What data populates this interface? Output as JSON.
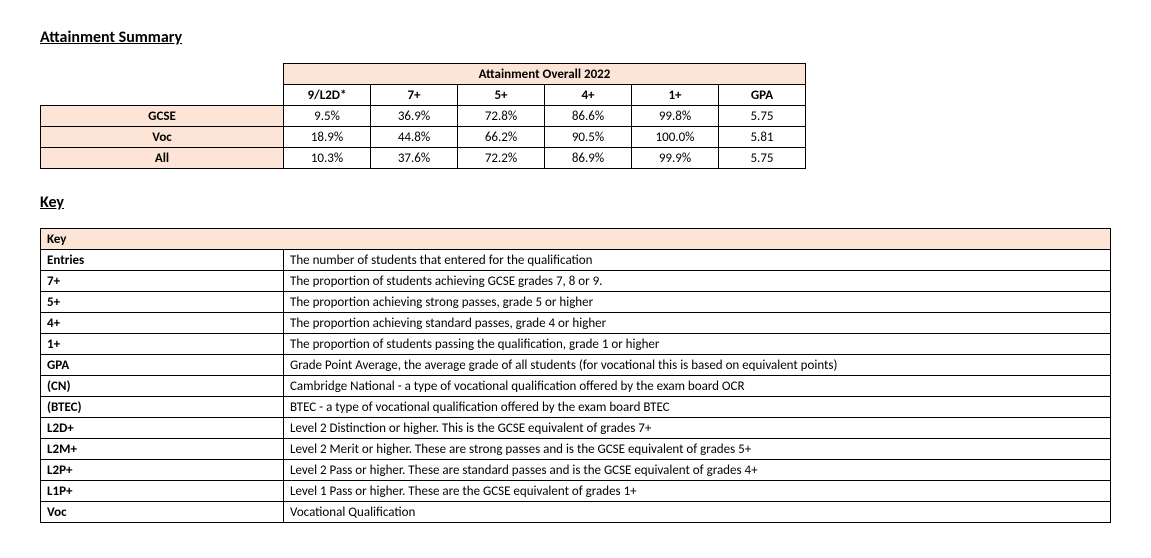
{
  "headings": {
    "attainment_summary": "Attainment Summary",
    "key": "Key"
  },
  "attainment": {
    "title": "Attainment Overall 2022",
    "columns": [
      "9/L2D*",
      "7+",
      "5+",
      "4+",
      "1+",
      "GPA"
    ],
    "rows": [
      {
        "label": "GCSE",
        "values": [
          "9.5%",
          "36.9%",
          "72.8%",
          "86.6%",
          "99.8%",
          "5.75"
        ]
      },
      {
        "label": "Voc",
        "values": [
          "18.9%",
          "44.8%",
          "66.2%",
          "90.5%",
          "100.0%",
          "5.81"
        ]
      },
      {
        "label": "All",
        "values": [
          "10.3%",
          "37.6%",
          "72.2%",
          "86.9%",
          "99.9%",
          "5.75"
        ]
      }
    ]
  },
  "key_table": {
    "title": "Key",
    "rows": [
      {
        "term": "Entries",
        "definition": "The number of students that entered for the qualification"
      },
      {
        "term": "7+",
        "definition": "The proportion of students achieving GCSE grades 7, 8 or 9."
      },
      {
        "term": "5+",
        "definition": "The proportion achieving strong passes, grade 5 or higher"
      },
      {
        "term": "4+",
        "definition": "The proportion achieving standard passes, grade 4 or higher"
      },
      {
        "term": "1+",
        "definition": "The proportion of students passing the qualification, grade 1 or higher"
      },
      {
        "term": "GPA",
        "definition": "Grade Point Average, the average grade of all students (for vocational this is based on equivalent points)"
      },
      {
        "term": "(CN)",
        "definition": "Cambridge National  - a type of vocational qualification offered by the exam board OCR"
      },
      {
        "term": "(BTEC)",
        "definition": "BTEC - a type of vocational qualification offered by the exam board BTEC"
      },
      {
        "term": "L2D+",
        "definition": "Level 2 Distinction or higher. This is the GCSE equivalent of grades 7+"
      },
      {
        "term": "L2M+",
        "definition": "Level 2 Merit or higher. These are strong passes and  is the GCSE equivalent of grades 5+"
      },
      {
        "term": "L2P+",
        "definition": "Level 2 Pass or higher. These are standard passes and is the GCSE equivalent of grades 4+"
      },
      {
        "term": "L1P+",
        "definition": "Level 1 Pass or higher. These are the GCSE equivalent of grades 1+"
      },
      {
        "term": "Voc",
        "definition": "Vocational Qualification"
      }
    ]
  },
  "style": {
    "highlight_bg": "#fce4d6",
    "border_color": "#000000",
    "page_bg": "#ffffff",
    "font_family": "Calibri, Arial, sans-serif"
  }
}
